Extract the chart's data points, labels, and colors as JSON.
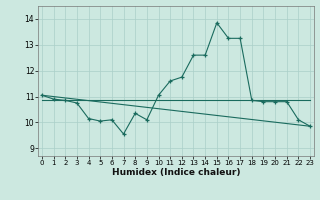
{
  "title": "",
  "xlabel": "Humidex (Indice chaleur)",
  "ylabel": "",
  "background_color": "#cce8e0",
  "line_color": "#1a6b5e",
  "grid_color": "#aacfc8",
  "x_ticks": [
    0,
    1,
    2,
    3,
    4,
    5,
    6,
    7,
    8,
    9,
    10,
    11,
    12,
    13,
    14,
    15,
    16,
    17,
    18,
    19,
    20,
    21,
    22,
    23
  ],
  "y_ticks": [
    9,
    10,
    11,
    12,
    13,
    14
  ],
  "ylim": [
    8.7,
    14.5
  ],
  "xlim": [
    -0.3,
    23.3
  ],
  "curve1": {
    "x": [
      0,
      1,
      2,
      3,
      4,
      5,
      6,
      7,
      8,
      9,
      10,
      11,
      12,
      13,
      14,
      15,
      16,
      17,
      18,
      19,
      20,
      21,
      22,
      23
    ],
    "y": [
      11.05,
      10.9,
      10.85,
      10.75,
      10.15,
      10.05,
      10.1,
      9.55,
      10.35,
      10.1,
      11.05,
      11.6,
      11.75,
      12.6,
      12.6,
      13.85,
      13.25,
      13.25,
      10.85,
      10.8,
      10.8,
      10.8,
      10.1,
      9.85
    ]
  },
  "line_flat": {
    "x": [
      0,
      18,
      23
    ],
    "y": [
      10.85,
      10.85,
      10.85
    ]
  },
  "line_descending": {
    "x": [
      0,
      23
    ],
    "y": [
      11.05,
      9.85
    ]
  }
}
